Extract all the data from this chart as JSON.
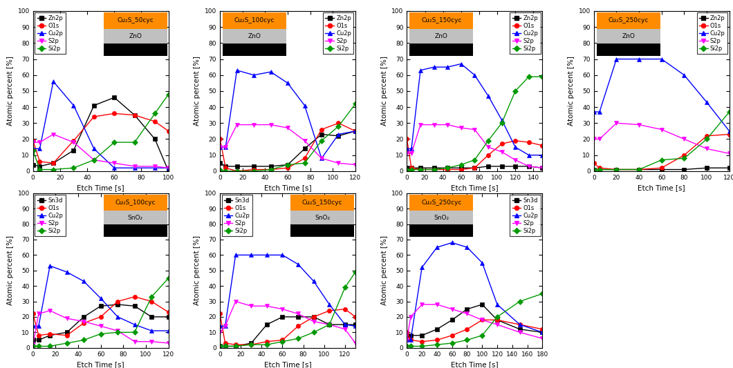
{
  "panels": [
    {
      "title": "Cu₂S_50cyc",
      "substrate": "ZnO",
      "legend_loc": "upper left",
      "inset_loc": "upper right",
      "legend_labels": [
        "Zn2p",
        "O1s",
        "Cu2p",
        "S2p",
        "Si2p"
      ],
      "xmax": 100,
      "xticks": [
        0,
        20,
        40,
        60,
        80,
        100
      ],
      "series": {
        "Zn2p": {
          "x": [
            0,
            5,
            15,
            30,
            45,
            60,
            75,
            90,
            100
          ],
          "y": [
            4,
            3,
            5,
            13,
            41,
            46,
            35,
            20,
            0
          ]
        },
        "O1s": {
          "x": [
            0,
            5,
            15,
            30,
            45,
            60,
            75,
            90,
            100
          ],
          "y": [
            19,
            6,
            5,
            19,
            34,
            36,
            35,
            31,
            25
          ]
        },
        "Cu2p": {
          "x": [
            0,
            5,
            15,
            30,
            45,
            60,
            75,
            90,
            100
          ],
          "y": [
            14,
            14,
            56,
            41,
            14,
            2,
            2,
            2,
            2
          ]
        },
        "S2p": {
          "x": [
            0,
            5,
            15,
            30,
            45,
            60,
            75,
            90,
            100
          ],
          "y": [
            18,
            18,
            23,
            18,
            7,
            5,
            3,
            3,
            2
          ]
        },
        "Si2p": {
          "x": [
            0,
            5,
            15,
            30,
            45,
            60,
            75,
            90,
            100
          ],
          "y": [
            13,
            1,
            1,
            2,
            7,
            18,
            18,
            36,
            48
          ]
        }
      }
    },
    {
      "title": "Cu₂S_100cyc",
      "substrate": "ZnO",
      "legend_loc": "upper right",
      "inset_loc": "upper left",
      "legend_labels": [
        "Zn2p",
        "O1s",
        "Cu2p",
        "S2p",
        "Si2p"
      ],
      "xmax": 120,
      "xticks": [
        0,
        20,
        40,
        60,
        80,
        100,
        120
      ],
      "series": {
        "Zn2p": {
          "x": [
            0,
            5,
            15,
            30,
            45,
            60,
            75,
            90,
            105,
            120
          ],
          "y": [
            5,
            3,
            3,
            3,
            3,
            4,
            14,
            23,
            22,
            25
          ]
        },
        "O1s": {
          "x": [
            0,
            5,
            15,
            30,
            45,
            60,
            75,
            90,
            105,
            120
          ],
          "y": [
            20,
            2,
            0,
            1,
            1,
            2,
            8,
            26,
            30,
            25
          ]
        },
        "Cu2p": {
          "x": [
            0,
            5,
            15,
            30,
            45,
            60,
            75,
            90,
            105,
            120
          ],
          "y": [
            15,
            15,
            63,
            60,
            62,
            55,
            41,
            8,
            23,
            25
          ]
        },
        "S2p": {
          "x": [
            0,
            5,
            15,
            30,
            45,
            60,
            75,
            90,
            105,
            120
          ],
          "y": [
            15,
            15,
            29,
            29,
            29,
            27,
            19,
            8,
            5,
            4
          ]
        },
        "Si2p": {
          "x": [
            0,
            5,
            15,
            30,
            45,
            60,
            75,
            90,
            105,
            120
          ],
          "y": [
            1,
            0,
            0,
            0,
            1,
            4,
            5,
            19,
            28,
            42
          ]
        }
      }
    },
    {
      "title": "Cu₂S_150cyc",
      "substrate": "ZnO",
      "legend_loc": "upper right",
      "inset_loc": "upper left",
      "legend_labels": [
        "Zn2p",
        "O1s",
        "Cu2p",
        "S2p",
        "Si2p"
      ],
      "xmax": 150,
      "xticks": [
        0,
        20,
        40,
        60,
        80,
        100,
        120,
        140
      ],
      "series": {
        "Zn2p": {
          "x": [
            0,
            5,
            15,
            30,
            45,
            60,
            75,
            90,
            105,
            120,
            135,
            150
          ],
          "y": [
            2,
            2,
            2,
            2,
            2,
            2,
            2,
            3,
            3,
            3,
            3,
            2
          ]
        },
        "O1s": {
          "x": [
            0,
            5,
            15,
            30,
            45,
            60,
            75,
            90,
            105,
            120,
            135,
            150
          ],
          "y": [
            20,
            2,
            1,
            1,
            1,
            1,
            2,
            10,
            17,
            19,
            18,
            16
          ]
        },
        "Cu2p": {
          "x": [
            0,
            5,
            15,
            30,
            45,
            60,
            75,
            90,
            105,
            120,
            135,
            150
          ],
          "y": [
            14,
            14,
            63,
            65,
            65,
            67,
            60,
            47,
            32,
            15,
            10,
            10
          ]
        },
        "S2p": {
          "x": [
            0,
            5,
            15,
            30,
            45,
            60,
            75,
            90,
            105,
            120,
            135,
            150
          ],
          "y": [
            11,
            11,
            29,
            29,
            29,
            27,
            26,
            15,
            12,
            7,
            3,
            2
          ]
        },
        "Si2p": {
          "x": [
            0,
            5,
            15,
            30,
            45,
            60,
            75,
            90,
            105,
            120,
            135,
            150
          ],
          "y": [
            1,
            1,
            1,
            1,
            2,
            4,
            7,
            19,
            30,
            50,
            59,
            59
          ]
        }
      }
    },
    {
      "title": "Cu₂S_250cyc",
      "substrate": "ZnO",
      "legend_loc": "upper right",
      "inset_loc": "upper left",
      "legend_labels": [
        "Zn2p",
        "O1s",
        "Cu2p",
        "S2p",
        "Si2p"
      ],
      "xmax": 120,
      "xticks": [
        0,
        20,
        40,
        60,
        80,
        100,
        120
      ],
      "series": {
        "Zn2p": {
          "x": [
            0,
            5,
            20,
            40,
            60,
            80,
            100,
            120
          ],
          "y": [
            1,
            1,
            1,
            1,
            1,
            1,
            2,
            2
          ]
        },
        "O1s": {
          "x": [
            0,
            5,
            20,
            40,
            60,
            80,
            100,
            120
          ],
          "y": [
            5,
            2,
            1,
            1,
            2,
            10,
            22,
            23
          ]
        },
        "Cu2p": {
          "x": [
            0,
            5,
            20,
            40,
            60,
            80,
            100,
            120
          ],
          "y": [
            37,
            37,
            70,
            70,
            70,
            60,
            43,
            25
          ]
        },
        "S2p": {
          "x": [
            0,
            5,
            20,
            40,
            60,
            80,
            100,
            120
          ],
          "y": [
            20,
            20,
            30,
            29,
            26,
            20,
            14,
            11
          ]
        },
        "Si2p": {
          "x": [
            0,
            5,
            20,
            40,
            60,
            80,
            100,
            120
          ],
          "y": [
            1,
            1,
            1,
            1,
            7,
            8,
            20,
            37
          ]
        }
      }
    },
    {
      "title": "Cu₂S_100cyc",
      "substrate": "SnO₂",
      "legend_loc": "upper left",
      "inset_loc": "upper right",
      "legend_labels": [
        "Sn3d",
        "O1s",
        "Cu2p",
        "S2p",
        "Si2p"
      ],
      "xmax": 120,
      "xticks": [
        0,
        20,
        40,
        60,
        80,
        100,
        120
      ],
      "series": {
        "Sn3d": {
          "x": [
            0,
            5,
            15,
            30,
            45,
            60,
            75,
            90,
            105,
            120
          ],
          "y": [
            5,
            5,
            8,
            10,
            20,
            27,
            28,
            27,
            20,
            20
          ]
        },
        "O1s": {
          "x": [
            0,
            5,
            15,
            30,
            45,
            60,
            75,
            90,
            105,
            120
          ],
          "y": [
            22,
            8,
            9,
            8,
            16,
            20,
            30,
            33,
            30,
            23
          ]
        },
        "Cu2p": {
          "x": [
            0,
            5,
            15,
            30,
            45,
            60,
            75,
            90,
            105,
            120
          ],
          "y": [
            14,
            14,
            53,
            49,
            43,
            32,
            20,
            15,
            11,
            11
          ]
        },
        "S2p": {
          "x": [
            0,
            5,
            15,
            30,
            45,
            60,
            75,
            90,
            105,
            120
          ],
          "y": [
            2,
            22,
            24,
            19,
            17,
            14,
            11,
            4,
            4,
            3
          ]
        },
        "Si2p": {
          "x": [
            0,
            5,
            15,
            30,
            45,
            60,
            75,
            90,
            105,
            120
          ],
          "y": [
            1,
            1,
            1,
            3,
            5,
            9,
            10,
            10,
            33,
            45
          ]
        }
      }
    },
    {
      "title": "Cu₂S_150cyc",
      "substrate": "SnO₂",
      "legend_loc": "upper left",
      "inset_loc": "upper right",
      "legend_labels": [
        "Sn3d",
        "O1s",
        "Cu2p",
        "S2p",
        "Si2p"
      ],
      "xmax": 130,
      "xticks": [
        0,
        20,
        40,
        60,
        80,
        100,
        120
      ],
      "series": {
        "Sn3d": {
          "x": [
            0,
            5,
            15,
            30,
            45,
            60,
            75,
            90,
            105,
            120,
            130
          ],
          "y": [
            1,
            1,
            1,
            3,
            15,
            20,
            20,
            20,
            15,
            15,
            15
          ]
        },
        "O1s": {
          "x": [
            0,
            5,
            15,
            30,
            45,
            60,
            75,
            90,
            105,
            120,
            130
          ],
          "y": [
            22,
            3,
            2,
            2,
            4,
            5,
            14,
            20,
            24,
            25,
            20
          ]
        },
        "Cu2p": {
          "x": [
            0,
            5,
            15,
            30,
            45,
            60,
            75,
            90,
            105,
            120,
            130
          ],
          "y": [
            14,
            14,
            60,
            60,
            60,
            60,
            54,
            43,
            28,
            15,
            14
          ]
        },
        "S2p": {
          "x": [
            0,
            5,
            15,
            30,
            45,
            60,
            75,
            90,
            105,
            120,
            130
          ],
          "y": [
            10,
            14,
            30,
            27,
            27,
            25,
            22,
            17,
            15,
            12,
            3
          ]
        },
        "Si2p": {
          "x": [
            0,
            5,
            15,
            30,
            45,
            60,
            75,
            90,
            105,
            120,
            130
          ],
          "y": [
            1,
            1,
            1,
            2,
            2,
            4,
            6,
            10,
            15,
            39,
            49
          ]
        }
      }
    },
    {
      "title": "Cu₂S_250cyc",
      "substrate": "SnO₂",
      "legend_loc": "upper right",
      "inset_loc": "upper left",
      "legend_labels": [
        "Sn3d",
        "O1s",
        "Cu2p",
        "S2p",
        "Si2p"
      ],
      "xmax": 180,
      "xticks": [
        0,
        20,
        40,
        60,
        80,
        100,
        120,
        140,
        160,
        180
      ],
      "series": {
        "Sn3d": {
          "x": [
            0,
            5,
            20,
            40,
            60,
            80,
            100,
            120,
            150,
            180
          ],
          "y": [
            8,
            8,
            8,
            12,
            18,
            25,
            28,
            18,
            12,
            10
          ]
        },
        "O1s": {
          "x": [
            0,
            5,
            20,
            40,
            60,
            80,
            100,
            120,
            150,
            180
          ],
          "y": [
            10,
            5,
            4,
            5,
            8,
            12,
            18,
            18,
            15,
            12
          ]
        },
        "Cu2p": {
          "x": [
            0,
            5,
            20,
            40,
            60,
            80,
            100,
            120,
            150,
            180
          ],
          "y": [
            5,
            5,
            52,
            65,
            68,
            65,
            55,
            28,
            15,
            10
          ]
        },
        "S2p": {
          "x": [
            0,
            5,
            20,
            40,
            60,
            80,
            100,
            120,
            150,
            180
          ],
          "y": [
            5,
            20,
            28,
            28,
            25,
            22,
            18,
            15,
            10,
            6
          ]
        },
        "Si2p": {
          "x": [
            0,
            5,
            20,
            40,
            60,
            80,
            100,
            120,
            150,
            180
          ],
          "y": [
            1,
            1,
            1,
            2,
            3,
            5,
            8,
            20,
            30,
            35
          ]
        }
      }
    }
  ],
  "colors": {
    "Zn2p": "#000000",
    "Sn3d": "#000000",
    "O1s": "#ff0000",
    "Cu2p": "#0000ff",
    "S2p": "#ff00ff",
    "Si2p": "#009900"
  },
  "markers": {
    "Zn2p": "s",
    "Sn3d": "s",
    "O1s": "o",
    "Cu2p": "^",
    "S2p": "v",
    "Si2p": "D"
  }
}
